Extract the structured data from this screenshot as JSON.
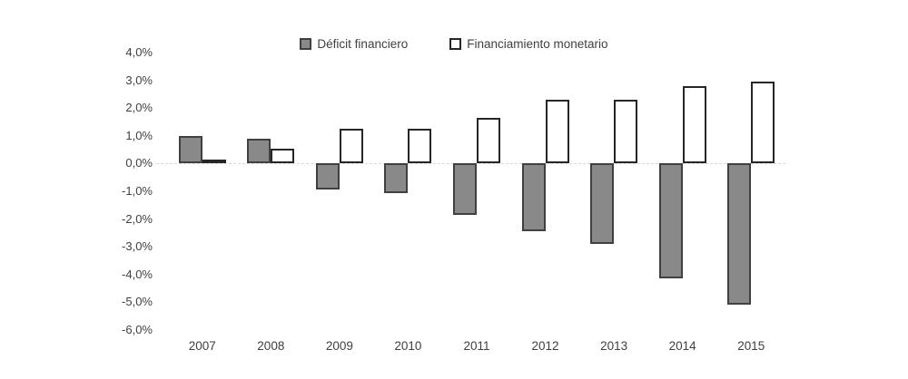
{
  "chart_data": {
    "type": "bar",
    "title": "",
    "xlabel": "",
    "ylabel": "",
    "categories": [
      "2007",
      "2008",
      "2009",
      "2010",
      "2011",
      "2012",
      "2013",
      "2014",
      "2015"
    ],
    "series": [
      {
        "name": "Déficit financiero",
        "style": "gray",
        "values": [
          1.0,
          0.9,
          -0.95,
          -1.05,
          -1.85,
          -2.45,
          -2.9,
          -4.15,
          -5.1
        ]
      },
      {
        "name": "Financiamiento monetario",
        "style": "white",
        "values": [
          0.05,
          0.55,
          1.25,
          1.25,
          1.65,
          2.3,
          2.3,
          2.8,
          2.95
        ]
      }
    ],
    "ylim": [
      -6,
      4
    ],
    "y_ticks": [
      4,
      3,
      2,
      1,
      0,
      -1,
      -2,
      -3,
      -4,
      -5,
      -6
    ],
    "y_tick_labels": [
      "4,0%",
      "3,0%",
      "2,0%",
      "1,0%",
      "0,0%",
      "-1,0%",
      "-2,0%",
      "-3,0%",
      "-4,0%",
      "-5,0%",
      "-6,0%"
    ],
    "grid": "zero-baseline-only",
    "legend_position": "top-center",
    "value_format": "percent-comma-decimal"
  },
  "legend": {
    "items": [
      {
        "label": "Déficit financiero",
        "swatch": "gray-filled-square"
      },
      {
        "label": "Financiamiento monetario",
        "swatch": "white-outlined-square"
      }
    ]
  },
  "colors": {
    "bar_gray_fill": "#898989",
    "bar_gray_border": "#404040",
    "bar_white_fill": "#ffffff",
    "bar_white_border": "#262626",
    "zero_line": "#d9d9d9",
    "text": "#3f3f3f",
    "background": "#ffffff"
  }
}
